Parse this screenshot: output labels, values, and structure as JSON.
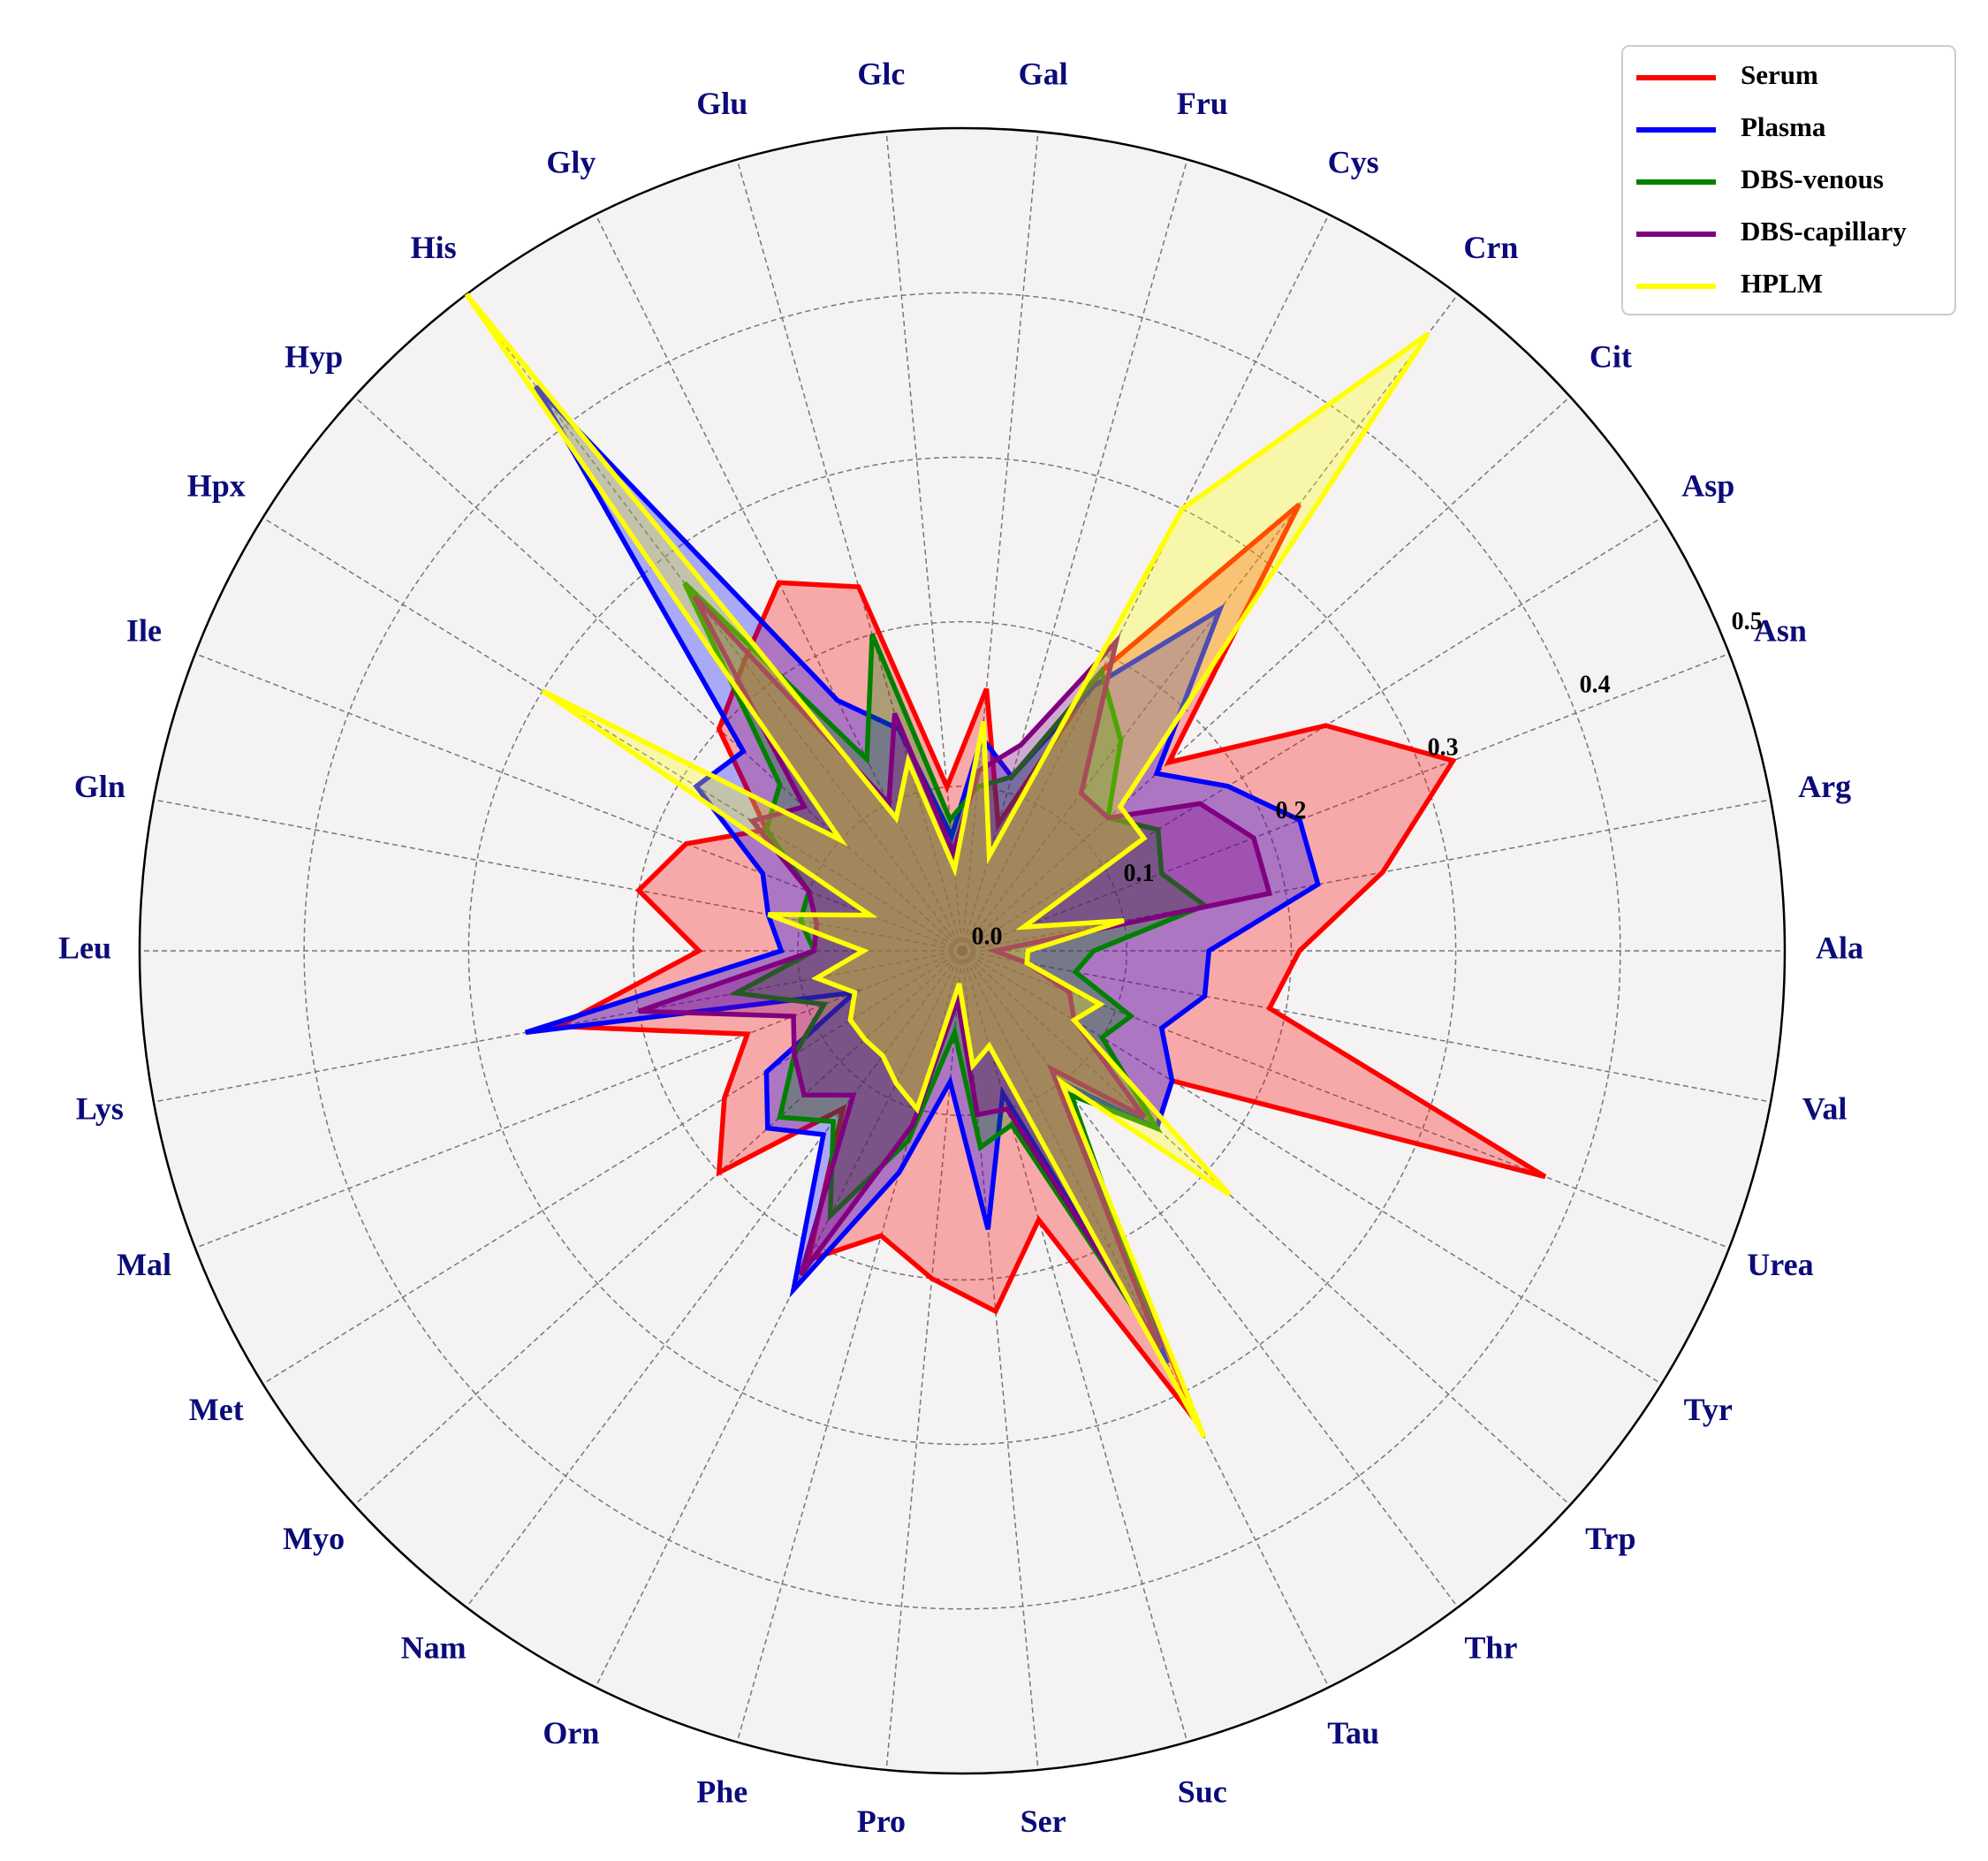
{
  "chart_data": {
    "type": "radar",
    "categories": [
      "Ala",
      "Arg",
      "Asn",
      "Asp",
      "Cit",
      "Crn",
      "Cys",
      "Fru",
      "Gal",
      "Glc",
      "Glu",
      "Gly",
      "His",
      "Hyp",
      "Hpx",
      "Ile",
      "Gln",
      "Leu",
      "Lys",
      "Mal",
      "Met",
      "Myo",
      "Nam",
      "Orn",
      "Phe",
      "Pro",
      "Ser",
      "Suc",
      "Tau",
      "Thr",
      "Trp",
      "Tyr",
      "Urea",
      "Val"
    ],
    "ylim": [
      0,
      0.5
    ],
    "yticks": [
      {
        "value": 0,
        "label": "0.0"
      },
      0.1,
      0.2,
      0.3,
      0.4,
      0.5
    ],
    "grid": true,
    "legend": "upper right",
    "series": [
      {
        "name": "Serum",
        "color": "#ff0000",
        "values": [
          0.205,
          0.26,
          0.32,
          0.26,
          0.17,
          0.34,
          0.19,
          0.08,
          0.16,
          0.1,
          0.23,
          0.25,
          0.22,
          0.2,
          0.14,
          0.18,
          0.2,
          0.16,
          0.25,
          0.14,
          0.17,
          0.2,
          0.12,
          0.21,
          0.18,
          0.2,
          0.22,
          0.17,
          0.32,
          0.1,
          0.16,
          0.15,
          0.38,
          0.19
        ]
      },
      {
        "name": "Plasma",
        "color": "#0000ff",
        "values": [
          0.15,
          0.22,
          0.22,
          0.19,
          0.16,
          0.26,
          0.18,
          0.11,
          0.13,
          0.07,
          0.14,
          0.17,
          0.43,
          0.18,
          0.19,
          0.13,
          0.12,
          0.11,
          0.27,
          0.07,
          0.14,
          0.16,
          0.14,
          0.23,
          0.14,
          0.08,
          0.17,
          0.09,
          0.28,
          0.1,
          0.16,
          0.15,
          0.13,
          0.15
        ]
      },
      {
        "name": "DBS-venous",
        "color": "#008000",
        "values": [
          0.08,
          0.15,
          0.13,
          0.14,
          0.12,
          0.16,
          0.19,
          0.11,
          0.1,
          0.08,
          0.2,
          0.13,
          0.28,
          0.15,
          0.14,
          0.1,
          0.1,
          0.09,
          0.14,
          0.09,
          0.12,
          0.15,
          0.13,
          0.18,
          0.12,
          0.05,
          0.12,
          0.11,
          0.27,
          0.11,
          0.16,
          0.1,
          0.11,
          0.07
        ]
      },
      {
        "name": "DBS-capillary",
        "color": "#800080",
        "values": [
          0.02,
          0.19,
          0.19,
          0.17,
          0.12,
          0.12,
          0.21,
          0.13,
          0.11,
          0.06,
          0.15,
          0.1,
          0.27,
          0.13,
          0.15,
          0.1,
          0.09,
          0.09,
          0.2,
          0.11,
          0.12,
          0.13,
          0.11,
          0.22,
          0.11,
          0.03,
          0.1,
          0.1,
          0.27,
          0.09,
          0.15,
          0.08,
          0.07,
          0.04
        ]
      },
      {
        "name": "HPLM",
        "color": "#ffff00",
        "values": [
          0.04,
          0.1,
          0.04,
          0.13,
          0.13,
          0.47,
          0.3,
          0.06,
          0.14,
          0.05,
          0.12,
          0.09,
          0.5,
          0.1,
          0.3,
          0.06,
          0.12,
          0.06,
          0.09,
          0.07,
          0.08,
          0.08,
          0.08,
          0.09,
          0.1,
          0.02,
          0.07,
          0.06,
          0.33,
          0.1,
          0.22,
          0.08,
          0.09,
          0.04
        ]
      }
    ]
  }
}
